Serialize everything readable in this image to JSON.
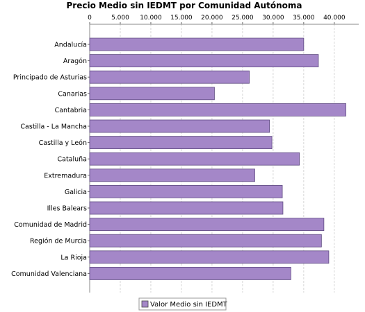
{
  "chart_data": {
    "type": "bar",
    "orientation": "horizontal",
    "title": "Precio Medio sin IEDMT por Comunidad Autónoma",
    "categories": [
      "Andalucía",
      "Aragón",
      "Principado de Asturias",
      "Canarias",
      "Cantabria",
      "Castilla - La Mancha",
      "Castilla y León",
      "Cataluña",
      "Extremadura",
      "Galicia",
      "Illes Balears",
      "Comunidad de Madrid",
      "Región de Murcia",
      "La Rioja",
      "Comunidad Valenciana"
    ],
    "series": [
      {
        "name": "Valor Medio sin IEDMT",
        "color": "#a487c8",
        "values": [
          35000,
          37400,
          26100,
          20400,
          41900,
          29400,
          29800,
          34300,
          27000,
          31500,
          31600,
          38300,
          37900,
          39100,
          32900
        ]
      }
    ],
    "xlim": [
      0,
      44000
    ],
    "x_ticks": [
      0,
      5000,
      10000,
      15000,
      20000,
      25000,
      30000,
      35000,
      40000
    ],
    "x_tick_labels": [
      "0",
      "5.000",
      "10.000",
      "15.000",
      "20.000",
      "25.000",
      "30.000",
      "35.000",
      "40.000"
    ],
    "x_axis_position": "top",
    "grid": true,
    "legend_position": "bottom-center"
  }
}
